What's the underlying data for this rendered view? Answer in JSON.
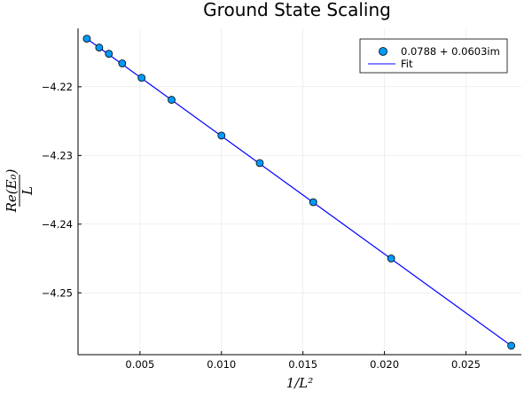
{
  "chart_data": {
    "type": "scatter",
    "title": "Ground State Scaling",
    "xlabel": "1/L²",
    "ylabel_numerator": "Re(E₀)",
    "ylabel_denominator": "L",
    "xlim": [
      0.0012,
      0.0284
    ],
    "ylim": [
      -4.259,
      -4.2115
    ],
    "x_ticks": [
      0.005,
      0.01,
      0.015,
      0.02,
      0.025
    ],
    "x_tick_labels": [
      "0.005",
      "0.010",
      "0.015",
      "0.020",
      "0.025"
    ],
    "y_ticks": [
      -4.22,
      -4.23,
      -4.24,
      -4.25
    ],
    "y_tick_labels": [
      "−4.22",
      "−4.23",
      "−4.24",
      "−4.25"
    ],
    "grid": true,
    "legend_position": "top-right",
    "series": [
      {
        "name": "0.0788 + 0.0603im",
        "kind": "scatter",
        "color": "#009af9",
        "x": [
          0.00174,
          0.0025,
          0.00309,
          0.00391,
          0.0051,
          0.00694,
          0.01,
          0.01235,
          0.01563,
          0.02041,
          0.02778
        ],
        "y": [
          -4.213,
          -4.2143,
          -4.2152,
          -4.2166,
          -4.2187,
          -4.2219,
          -4.2271,
          -4.2311,
          -4.2368,
          -4.245,
          -4.2577
        ]
      },
      {
        "name": "Fit",
        "kind": "line",
        "color": "#0000ff",
        "x": [
          0.00174,
          0.02778
        ],
        "y": [
          -4.213,
          -4.2577
        ]
      }
    ]
  }
}
